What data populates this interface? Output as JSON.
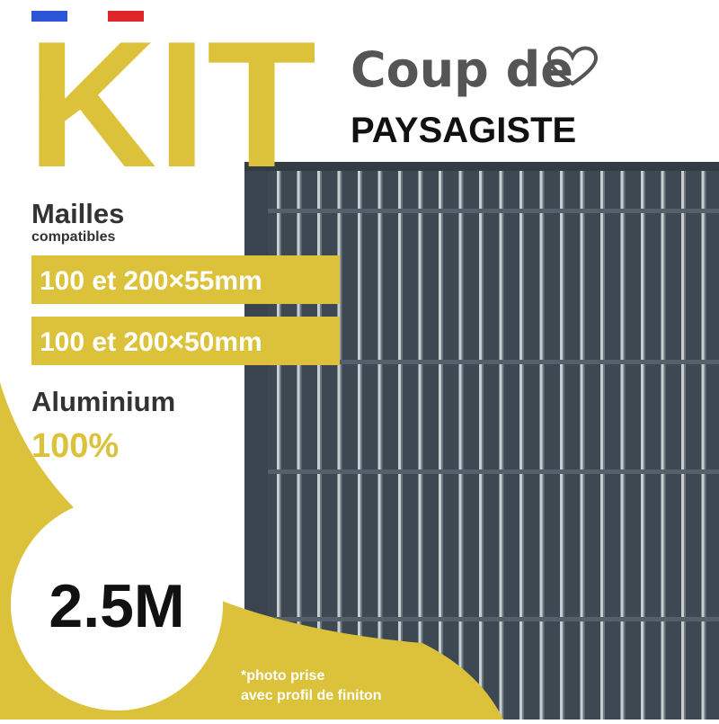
{
  "header": {
    "brand": "KIT",
    "tagline": "Coup de",
    "subtitle": "PAYSAGISTE"
  },
  "specs": {
    "mesh_title": "Mailles",
    "mesh_subtitle": "compatibles",
    "mesh_options": [
      "100 et 200×55mm",
      "100 et 200×50mm"
    ],
    "material": "Aluminium",
    "material_share": "100%"
  },
  "badge": "2.5M",
  "footnote": [
    "*photo prise",
    "avec profil de finiton"
  ]
}
